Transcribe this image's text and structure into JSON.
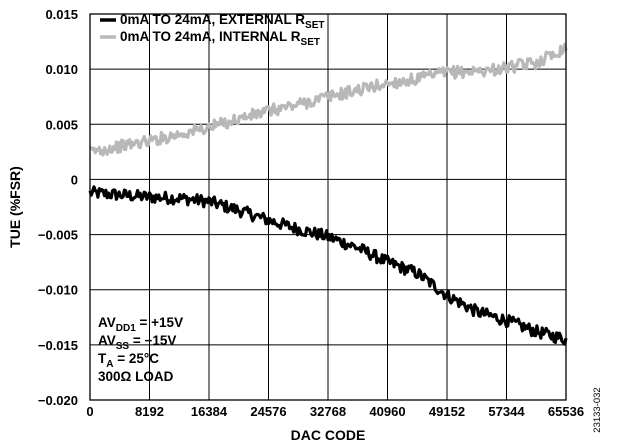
{
  "chart_data": {
    "type": "line",
    "title": "",
    "xlabel": "DAC CODE",
    "ylabel": "TUE (%FSR)",
    "xlim": [
      0,
      65536
    ],
    "ylim": [
      -0.02,
      0.015
    ],
    "grid": true,
    "legend_position": "top-left",
    "x_ticks": [
      "0",
      "8192",
      "16384",
      "24576",
      "32768",
      "40960",
      "49152",
      "57344",
      "65536"
    ],
    "y_ticks": [
      "0.015",
      "0.010",
      "0.005",
      "0",
      "-0.005",
      "-0.010",
      "-0.015",
      "-0.020"
    ],
    "x": [
      0,
      4096,
      8192,
      12288,
      16384,
      20480,
      24576,
      28672,
      32768,
      36864,
      40960,
      45056,
      49152,
      53248,
      57344,
      61440,
      65536
    ],
    "series": [
      {
        "name_main": "0mA TO 24mA, EXTERNAL R",
        "name_sub": "SET",
        "color": "#000000",
        "values": [
          -0.0012,
          -0.0014,
          -0.0016,
          -0.0017,
          -0.002,
          -0.0028,
          -0.0037,
          -0.0045,
          -0.0052,
          -0.0062,
          -0.0075,
          -0.0085,
          -0.0105,
          -0.012,
          -0.0128,
          -0.0138,
          -0.0145
        ]
      },
      {
        "name_main": "0mA TO 24mA, INTERNAL R",
        "name_sub": "SET",
        "color": "#b8b8b8",
        "values": [
          0.0025,
          0.003,
          0.0035,
          0.0041,
          0.0047,
          0.0055,
          0.0062,
          0.0068,
          0.0075,
          0.0081,
          0.0087,
          0.0091,
          0.0097,
          0.0098,
          0.0101,
          0.0106,
          0.012
        ]
      }
    ],
    "annotations": [
      {
        "main": "AV",
        "sub": "DD1",
        "rest": " = +15V"
      },
      {
        "main": "AV",
        "sub": "SS",
        "rest": " = −15V"
      },
      {
        "main": "T",
        "sub": "A",
        "rest": " = 25°C"
      },
      {
        "main": "300Ω LOAD",
        "sub": "",
        "rest": ""
      }
    ],
    "figure_id": "23133-032"
  }
}
